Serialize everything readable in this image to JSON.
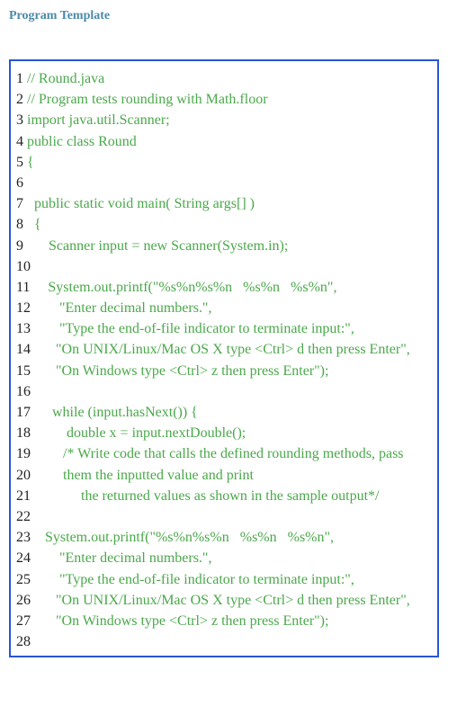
{
  "heading": "Program Template",
  "colors": {
    "heading": "#4a8aa8",
    "border": "#2755d8",
    "line_number": "#222222",
    "code_text": "#4aa84a",
    "background": "#ffffff"
  },
  "typography": {
    "heading_fontsize": 14,
    "code_fontsize": 16,
    "font_family": "Times New Roman"
  },
  "lines": [
    {
      "n": "1",
      "t": " // Round.java"
    },
    {
      "n": "2",
      "t": " // Program tests rounding with Math.floor"
    },
    {
      "n": "3",
      "t": " import java.util.Scanner;"
    },
    {
      "n": "4",
      "t": " public class Round"
    },
    {
      "n": "5",
      "t": " {"
    },
    {
      "n": "6",
      "t": ""
    },
    {
      "n": "7",
      "t": "   public static void main( String args[] )"
    },
    {
      "n": "8",
      "t": "   {"
    },
    {
      "n": "9",
      "t": "       Scanner input = new Scanner(System.in);"
    },
    {
      "n": "10",
      "t": ""
    },
    {
      "n": "11",
      "t": "     System.out.printf(\"%s%n%s%n   %s%n   %s%n\","
    },
    {
      "n": "12",
      "t": "        \"Enter decimal numbers.\","
    },
    {
      "n": "13",
      "t": "        \"Type the end-of-file indicator to terminate input:\","
    },
    {
      "n": "14",
      "t": "       \"On UNIX/Linux/Mac OS X type <Ctrl> d then press Enter\","
    },
    {
      "n": "15",
      "t": "       \"On Windows type <Ctrl> z then press Enter\");"
    },
    {
      "n": "16",
      "t": ""
    },
    {
      "n": "17",
      "t": "      while (input.hasNext()) {"
    },
    {
      "n": "18",
      "t": "          double x = input.nextDouble();"
    },
    {
      "n": "19",
      "t": "         /* Write code that calls the defined rounding methods, pass"
    },
    {
      "n": "20",
      "t": "         them the inputted value and print"
    },
    {
      "n": "21",
      "t": "              the returned values as shown in the sample output*/"
    },
    {
      "n": "22",
      "t": ""
    },
    {
      "n": "23",
      "t": "    System.out.printf(\"%s%n%s%n   %s%n   %s%n\","
    },
    {
      "n": "24",
      "t": "        \"Enter decimal numbers.\","
    },
    {
      "n": "25",
      "t": "        \"Type the end-of-file indicator to terminate input:\","
    },
    {
      "n": "26",
      "t": "       \"On UNIX/Linux/Mac OS X type <Ctrl> d then press Enter\","
    },
    {
      "n": "27",
      "t": "       \"On Windows type <Ctrl> z then press Enter\");"
    },
    {
      "n": "28",
      "t": ""
    }
  ]
}
